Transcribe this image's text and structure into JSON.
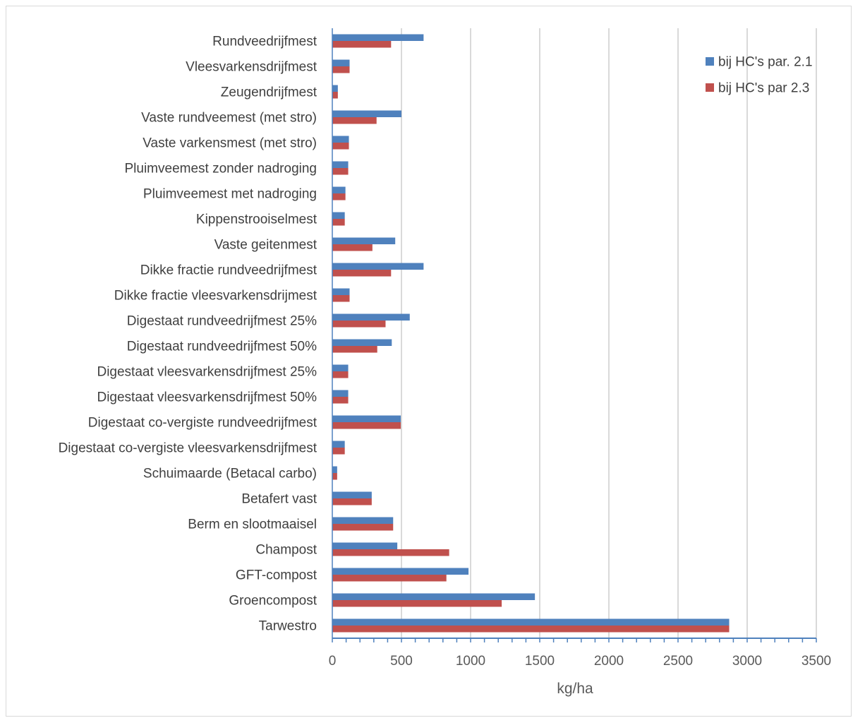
{
  "chart_data": {
    "type": "bar",
    "orientation": "horizontal",
    "xlabel": "kg/ha",
    "ylabel": "",
    "xlim": [
      0,
      3500
    ],
    "xticks": [
      0,
      500,
      1000,
      1500,
      2000,
      2500,
      3000,
      3500
    ],
    "grid": "vertical",
    "legend_position": "top-right",
    "categories": [
      "Rundveedrijfmest",
      "Vleesvarkensdrijfmest",
      "Zeugendrijfmest",
      "Vaste rundveemest (met stro)",
      "Vaste varkensmest (met stro)",
      "Pluimveemest zonder nadroging",
      "Pluimveemest met nadroging",
      "Kippenstrooiselmest",
      "Vaste geitenmest",
      "Dikke fractie rundveedrijfmest",
      "Dikke fractie vleesvarkensdrijmest",
      "Digestaat rundveedrijfmest 25%",
      "Digestaat rundveedrijfmest 50%",
      "Digestaat vleesvarkensdrijfmest 25%",
      "Digestaat vleesvarkensdrijfmest 50%",
      "Digestaat co-vergiste rundveedrijfmest",
      "Digestaat co-vergiste vleesvarkensdrijfmest",
      "Schuimaarde (Betacal carbo)",
      "Betafert vast",
      "Berm en slootmaaisel",
      "Champost",
      "GFT-compost",
      "Groencompost",
      "Tarwestro"
    ],
    "series": [
      {
        "name": "bij HC's par. 2.1",
        "color": "#4f81bd",
        "values": [
          660,
          125,
          40,
          500,
          120,
          115,
          95,
          90,
          455,
          660,
          125,
          560,
          430,
          115,
          115,
          495,
          90,
          35,
          285,
          440,
          470,
          985,
          1465,
          2870
        ]
      },
      {
        "name": "bij HC's par 2.3",
        "color": "#c0504d",
        "values": [
          425,
          125,
          40,
          320,
          120,
          115,
          95,
          90,
          290,
          425,
          125,
          385,
          325,
          115,
          115,
          495,
          90,
          35,
          285,
          440,
          845,
          825,
          1225,
          2870
        ]
      }
    ]
  }
}
